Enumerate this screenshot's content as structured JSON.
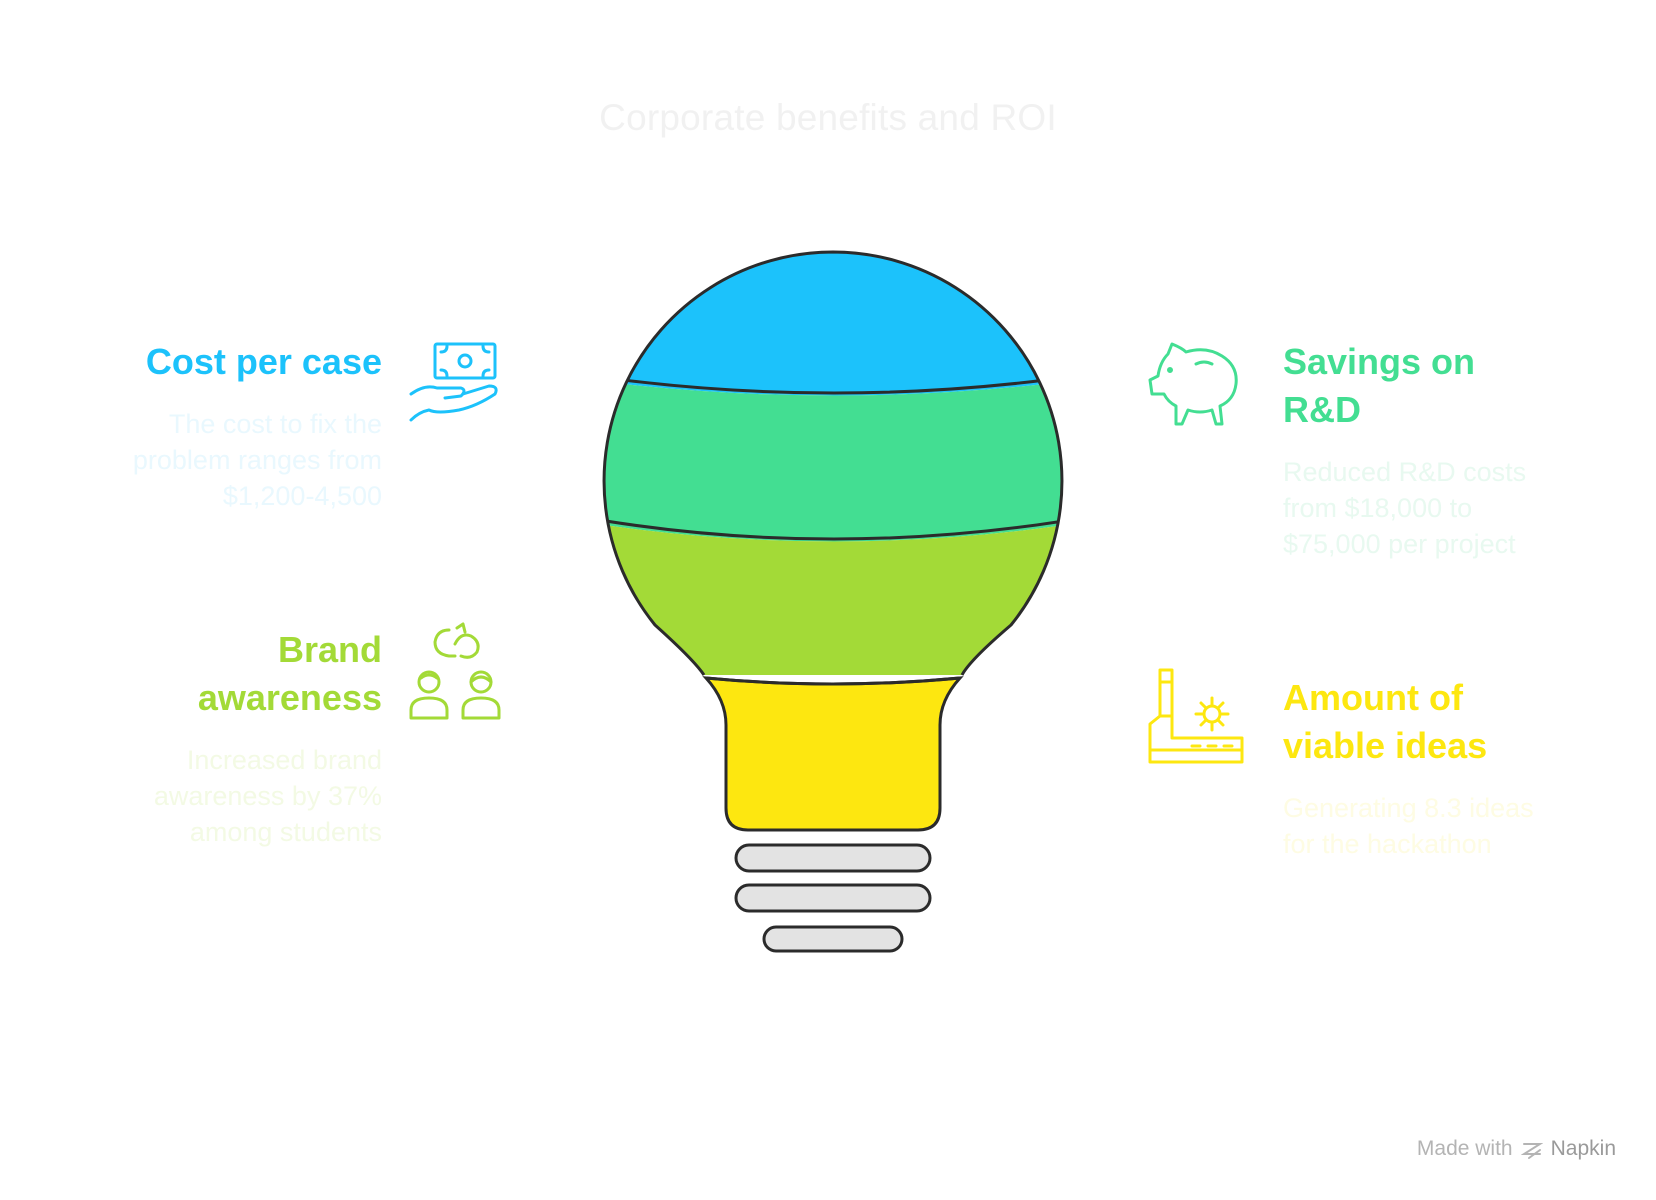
{
  "title": "Corporate benefits and ROI",
  "colors": {
    "blue": "#1cc2fb",
    "green": "#43de92",
    "lime": "#a3da37",
    "yellow": "#fde710",
    "socket": "#e3e3e3",
    "outline": "#2b2b2b"
  },
  "items": [
    {
      "heading": "Cost per case",
      "description": "The cost to fix the problem ranges from $1,200-4,500",
      "icon": "money-hand-icon",
      "color": "#1cc2fb",
      "desc_color": "#e9f8fe"
    },
    {
      "heading": "Savings on R&D",
      "description": "Reduced R&D costs from $18,000 to $75,000 per project",
      "icon": "piggy-bank-icon",
      "color": "#43de92",
      "desc_color": "#e8f9f0"
    },
    {
      "heading": "Brand awareness",
      "description": "Increased brand awareness by 37% among students",
      "icon": "people-connection-icon",
      "color": "#a3da37",
      "desc_color": "#f3fae4"
    },
    {
      "heading": "Amount of viable ideas",
      "description": "Generating 8.3 ideas for the hackathon",
      "icon": "factory-gear-icon",
      "color": "#fde710",
      "desc_color": "#fefce3"
    }
  ],
  "footer": {
    "made_with": "Made with",
    "brand": "Napkin"
  }
}
